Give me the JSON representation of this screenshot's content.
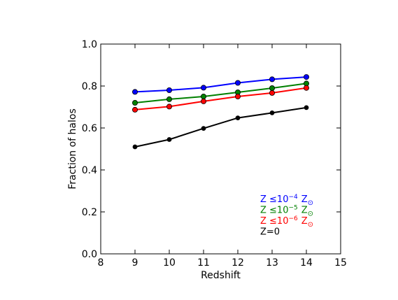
{
  "chart_data": {
    "type": "line",
    "title": "",
    "xlabel": "Redshift",
    "ylabel": "Fraction of halos",
    "xlim": [
      8,
      15
    ],
    "ylim": [
      0.0,
      1.0
    ],
    "xticks": [
      8,
      9,
      10,
      11,
      12,
      13,
      14,
      15
    ],
    "xtick_labels": [
      "8",
      "9",
      "10",
      "11",
      "12",
      "13",
      "14",
      "15"
    ],
    "yticks": [
      0.0,
      0.2,
      0.4,
      0.6,
      0.8,
      1.0
    ],
    "ytick_labels": [
      "0.0",
      "0.2",
      "0.4",
      "0.6",
      "0.8",
      "1.0"
    ],
    "grid": false,
    "legend_position": "lower-right",
    "x": [
      9,
      10,
      11,
      12,
      13,
      14
    ],
    "series": [
      {
        "name": "Z ≤10⁻⁴ Z☉",
        "label_main": "Z ≤10",
        "label_exp": "−4",
        "label_z": "Z",
        "label_sun": "⊙",
        "color": "#0000ff",
        "values": [
          0.772,
          0.78,
          0.792,
          0.815,
          0.832,
          0.843
        ]
      },
      {
        "name": "Z ≤10⁻⁵ Z☉",
        "label_main": "Z ≤10",
        "label_exp": "−5",
        "label_z": "Z",
        "label_sun": "⊙",
        "color": "#008000",
        "values": [
          0.72,
          0.737,
          0.75,
          0.77,
          0.79,
          0.812
        ]
      },
      {
        "name": "Z ≤10⁻⁶ Z☉",
        "label_main": "Z ≤10",
        "label_exp": "−6",
        "label_z": "Z",
        "label_sun": "⊙",
        "color": "#ff0000",
        "values": [
          0.687,
          0.702,
          0.727,
          0.75,
          0.767,
          0.791
        ]
      },
      {
        "name": "Z=0",
        "label_main": "Z=0",
        "label_exp": "",
        "label_z": "",
        "label_sun": "",
        "color": "#000000",
        "values": [
          0.51,
          0.545,
          0.598,
          0.648,
          0.672,
          0.697
        ]
      }
    ]
  }
}
